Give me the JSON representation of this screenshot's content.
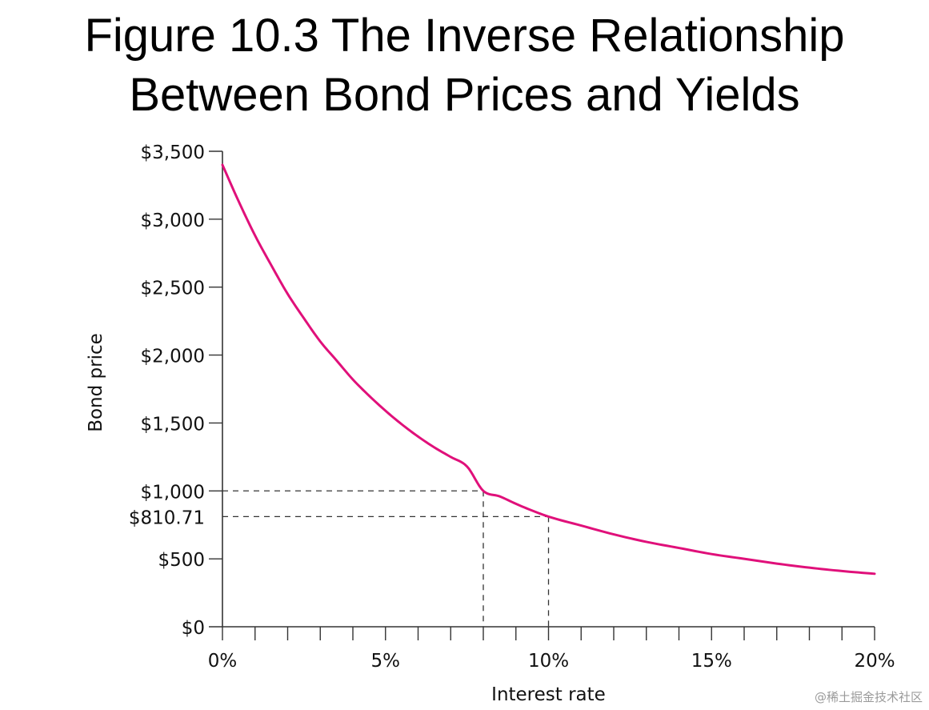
{
  "title": {
    "line1": "Figure 10.3 The Inverse Relationship",
    "line2": "Between Bond Prices and Yields"
  },
  "chart_data": {
    "type": "line",
    "xlabel": "Interest rate",
    "ylabel": "Bond price",
    "xlim": [
      0,
      20
    ],
    "ylim": [
      0,
      3500
    ],
    "x_tick_labels": [
      {
        "value": 0,
        "label": "0%"
      },
      {
        "value": 5,
        "label": "5%"
      },
      {
        "value": 10,
        "label": "10%"
      },
      {
        "value": 15,
        "label": "15%"
      },
      {
        "value": 20,
        "label": "20%"
      }
    ],
    "x_minor_ticks": [
      0,
      1,
      2,
      3,
      4,
      5,
      6,
      7,
      8,
      9,
      10,
      11,
      12,
      13,
      14,
      15,
      16,
      17,
      18,
      19,
      20
    ],
    "y_tick_labels": [
      {
        "value": 0,
        "label": "$0"
      },
      {
        "value": 500,
        "label": "$500"
      },
      {
        "value": 810.71,
        "label": "$810.71"
      },
      {
        "value": 1000,
        "label": "$1,000"
      },
      {
        "value": 1500,
        "label": "$1,500"
      },
      {
        "value": 2000,
        "label": "$2,000"
      },
      {
        "value": 2500,
        "label": "$2,500"
      },
      {
        "value": 3000,
        "label": "$3,000"
      },
      {
        "value": 3500,
        "label": "$3,500"
      }
    ],
    "series": [
      {
        "color": "#e0107a",
        "x": [
          0,
          0.5,
          1,
          1.5,
          2,
          2.5,
          3,
          3.5,
          4,
          4.5,
          5,
          5.5,
          6,
          6.5,
          7,
          7.5,
          8,
          8.5,
          9,
          9.5,
          10,
          11,
          12,
          13,
          14,
          15,
          16,
          17,
          18,
          19,
          20
        ],
        "y": [
          3400,
          3130,
          2880,
          2660,
          2450,
          2270,
          2100,
          1960,
          1820,
          1700,
          1590,
          1490,
          1400,
          1320,
          1250,
          1180,
          1000,
          960,
          905,
          855,
          810.71,
          745,
          680,
          625,
          580,
          535,
          500,
          465,
          435,
          410,
          390
        ]
      }
    ],
    "reference_points": [
      {
        "x": 8,
        "y": 1000
      },
      {
        "x": 10,
        "y": 810.71
      }
    ],
    "grid": false,
    "legend": "none"
  },
  "watermark": "@稀土掘金技术社区"
}
